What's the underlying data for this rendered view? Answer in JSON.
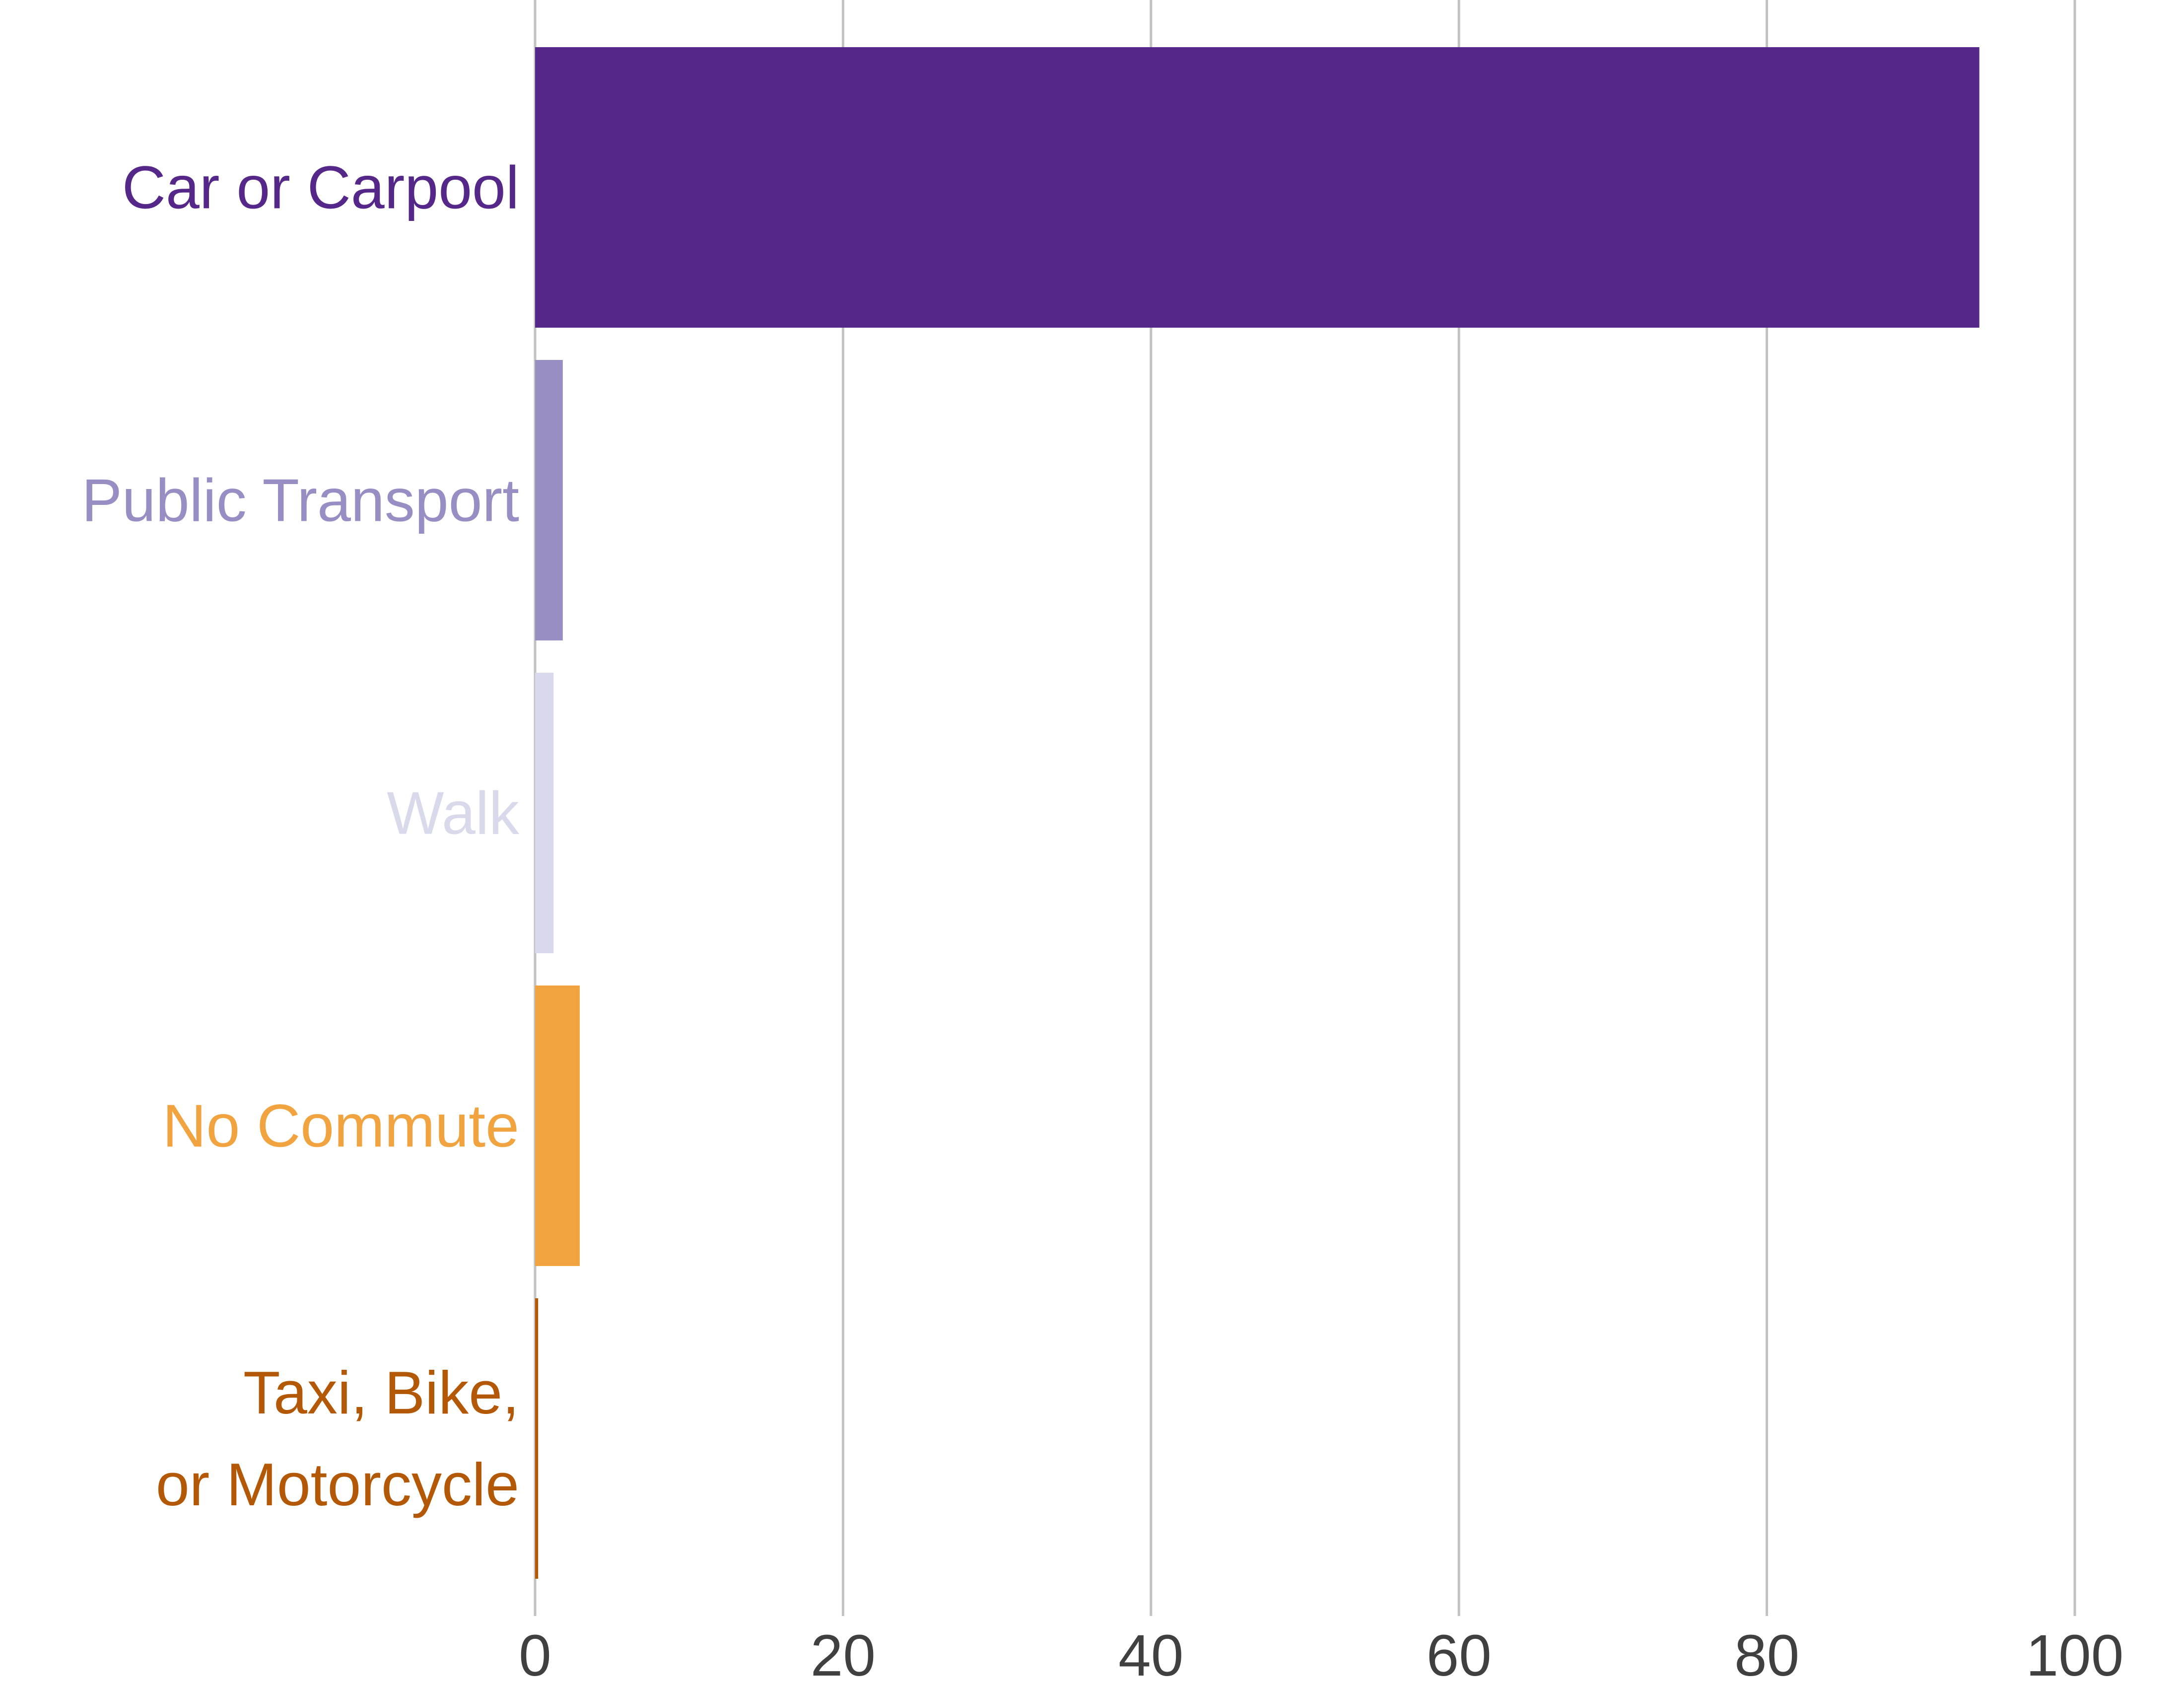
{
  "chart_data": {
    "type": "bar",
    "orientation": "horizontal",
    "categories": [
      [
        "Car or Carpool"
      ],
      [
        "Public Transport"
      ],
      [
        "Walk"
      ],
      [
        "No Commute"
      ],
      [
        "Taxi, Bike,",
        "or Motorcycle"
      ]
    ],
    "values": [
      93.8,
      1.8,
      1.2,
      2.9,
      0.2
    ],
    "colors": [
      "#542788",
      "#998ec3",
      "#d8daeb",
      "#f1a340",
      "#b35806"
    ],
    "xlim": [
      0,
      100
    ],
    "xticks": [
      0,
      20,
      40,
      60,
      80,
      100
    ],
    "grid": "vertical",
    "legend": "none"
  }
}
